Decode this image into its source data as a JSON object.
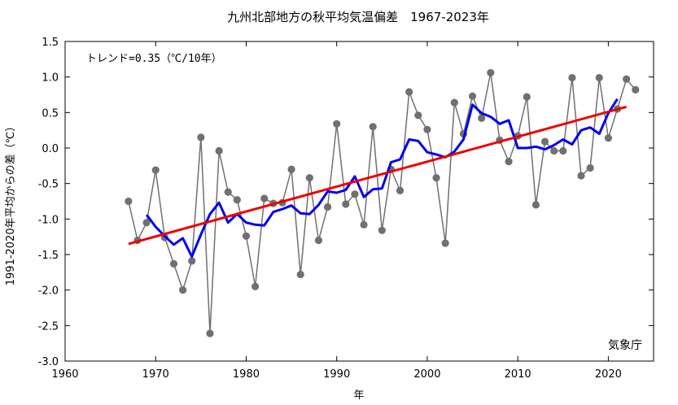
{
  "chart_data": {
    "type": "line",
    "title": "九州北部地方の秋平均気温偏差　1967-2023年",
    "xlabel": "年",
    "ylabel": "1991-2020年平均からの差（℃）",
    "trend_label": "トレンド=0.35（℃/10年）",
    "credit": "気象庁",
    "xlim": [
      1960,
      2025
    ],
    "ylim": [
      -3.0,
      1.5
    ],
    "x_ticks": [
      "1960",
      "1970",
      "1980",
      "1990",
      "2000",
      "2010",
      "2020"
    ],
    "x_tick_values": [
      1960,
      1970,
      1980,
      1990,
      2000,
      2010,
      2020
    ],
    "y_ticks": [
      "1.5",
      "1.0",
      "0.5",
      "0.0",
      "-0.5",
      "-1.0",
      "-1.5",
      "-2.0",
      "-2.5",
      "-3.0"
    ],
    "y_tick_values": [
      1.5,
      1.0,
      0.5,
      0.0,
      -0.5,
      -1.0,
      -1.5,
      -2.0,
      -2.5,
      -3.0
    ],
    "grid": false,
    "series": [
      {
        "role": "annual",
        "color": "#707070",
        "x": [
          1967,
          1968,
          1969,
          1970,
          1971,
          1972,
          1973,
          1974,
          1975,
          1976,
          1977,
          1978,
          1979,
          1980,
          1981,
          1982,
          1983,
          1984,
          1985,
          1986,
          1987,
          1988,
          1989,
          1990,
          1991,
          1992,
          1993,
          1994,
          1995,
          1996,
          1997,
          1998,
          1999,
          2000,
          2001,
          2002,
          2003,
          2004,
          2005,
          2006,
          2007,
          2008,
          2009,
          2010,
          2011,
          2012,
          2013,
          2014,
          2015,
          2016,
          2017,
          2018,
          2019,
          2020,
          2021,
          2022,
          2023
        ],
        "values": [
          -0.75,
          -1.3,
          -1.05,
          -0.31,
          -1.26,
          -1.63,
          -2.0,
          -1.59,
          0.15,
          -2.61,
          -0.04,
          -0.62,
          -0.73,
          -1.24,
          -1.95,
          -0.71,
          -0.78,
          -0.77,
          -0.3,
          -1.78,
          -0.42,
          -1.3,
          -0.83,
          0.34,
          -0.79,
          -0.65,
          -1.08,
          0.3,
          -1.16,
          -0.3,
          -0.6,
          0.79,
          0.46,
          0.26,
          -0.42,
          -1.34,
          0.64,
          0.2,
          0.73,
          0.42,
          1.06,
          0.11,
          -0.19,
          0.17,
          0.72,
          -0.8,
          0.09,
          -0.04,
          -0.04,
          0.99,
          -0.39,
          -0.28,
          0.99,
          0.14,
          0.55,
          0.97,
          0.82
        ]
      },
      {
        "role": "5-year running mean",
        "color": "#0000ee",
        "x": [
          1969,
          1970,
          1971,
          1972,
          1973,
          1974,
          1975,
          1976,
          1977,
          1978,
          1979,
          1980,
          1981,
          1982,
          1983,
          1984,
          1985,
          1986,
          1987,
          1988,
          1989,
          1990,
          1991,
          1992,
          1993,
          1994,
          1995,
          1996,
          1997,
          1998,
          1999,
          2000,
          2001,
          2002,
          2003,
          2004,
          2005,
          2006,
          2007,
          2008,
          2009,
          2010,
          2011,
          2012,
          2013,
          2014,
          2015,
          2016,
          2017,
          2018,
          2019,
          2020,
          2021
        ],
        "values": [
          -0.94,
          -1.11,
          -1.24,
          -1.36,
          -1.27,
          -1.53,
          -1.22,
          -0.93,
          -0.77,
          -1.05,
          -0.93,
          -1.05,
          -1.08,
          -1.09,
          -0.9,
          -0.86,
          -0.81,
          -0.92,
          -0.93,
          -0.8,
          -0.61,
          -0.63,
          -0.59,
          -0.4,
          -0.69,
          -0.58,
          -0.57,
          -0.2,
          -0.16,
          0.12,
          0.1,
          -0.06,
          -0.09,
          -0.13,
          -0.05,
          0.12,
          0.61,
          0.49,
          0.44,
          0.34,
          0.39,
          0.0,
          0.0,
          0.02,
          -0.02,
          0.04,
          0.12,
          0.05,
          0.25,
          0.29,
          0.2,
          0.49,
          0.69
        ]
      },
      {
        "role": "trend",
        "color": "#ee0000",
        "x": [
          1967,
          2022
        ],
        "values": [
          -1.35,
          0.58
        ]
      }
    ]
  }
}
